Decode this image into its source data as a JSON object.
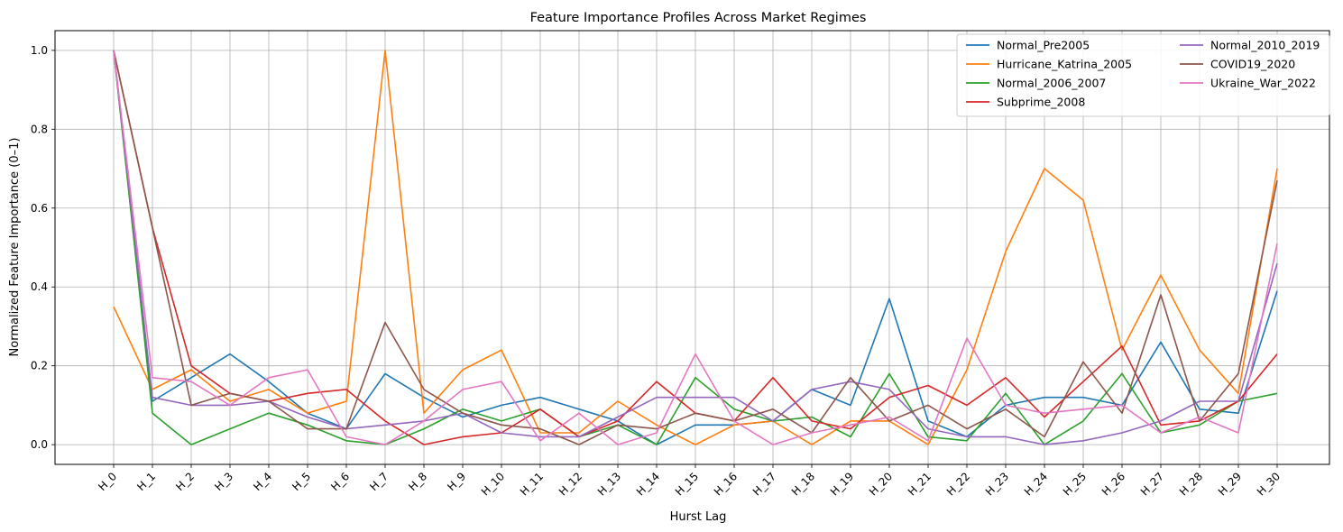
{
  "chart_data": {
    "type": "line",
    "title": "Feature Importance Profiles Across Market Regimes",
    "xlabel": "Hurst Lag",
    "ylabel": "Normalized Feature Importance (0–1)",
    "ylim": [
      -0.05,
      1.05
    ],
    "yticks": [
      "0.0",
      "0.2",
      "0.4",
      "0.6",
      "0.8",
      "1.0"
    ],
    "ytick_values": [
      0.0,
      0.2,
      0.4,
      0.6,
      0.8,
      1.0
    ],
    "grid": true,
    "legend_position": "top-right",
    "categories": [
      "H_0",
      "H_1",
      "H_2",
      "H_3",
      "H_4",
      "H_5",
      "H_6",
      "H_7",
      "H_8",
      "H_9",
      "H_10",
      "H_11",
      "H_12",
      "H_13",
      "H_14",
      "H_15",
      "H_16",
      "H_17",
      "H_18",
      "H_19",
      "H_20",
      "H_21",
      "H_22",
      "H_23",
      "H_24",
      "H_25",
      "H_26",
      "H_27",
      "H_28",
      "H_29",
      "H_30"
    ],
    "series": [
      {
        "name": "Normal_Pre2005",
        "color": "#1f77b4",
        "values": [
          1.0,
          0.11,
          0.17,
          0.23,
          0.16,
          0.08,
          0.04,
          0.18,
          0.12,
          0.07,
          0.1,
          0.12,
          0.09,
          0.06,
          0.0,
          0.05,
          0.05,
          0.06,
          0.14,
          0.1,
          0.37,
          0.06,
          0.02,
          0.1,
          0.12,
          0.12,
          0.1,
          0.26,
          0.09,
          0.08,
          0.39
        ]
      },
      {
        "name": "Hurricane_Katrina_2005",
        "color": "#ff7f0e",
        "values": [
          0.35,
          0.14,
          0.19,
          0.11,
          0.14,
          0.08,
          0.11,
          1.0,
          0.08,
          0.19,
          0.24,
          0.03,
          0.03,
          0.11,
          0.05,
          0.0,
          0.05,
          0.06,
          0.0,
          0.06,
          0.06,
          0.0,
          0.19,
          0.49,
          0.7,
          0.62,
          0.24,
          0.43,
          0.24,
          0.13,
          0.7
        ]
      },
      {
        "name": "Normal_2006_2007",
        "color": "#2ca02c",
        "values": [
          1.0,
          0.08,
          0.0,
          0.04,
          0.08,
          0.05,
          0.01,
          0.0,
          0.04,
          0.09,
          0.06,
          0.09,
          0.02,
          0.05,
          0.0,
          0.17,
          0.09,
          0.06,
          0.07,
          0.02,
          0.18,
          0.02,
          0.01,
          0.13,
          0.0,
          0.06,
          0.18,
          0.03,
          0.05,
          0.11,
          0.13
        ]
      },
      {
        "name": "Subprime_2008",
        "color": "#d62728",
        "values": [
          1.0,
          0.55,
          0.2,
          0.13,
          0.11,
          0.13,
          0.14,
          0.06,
          0.0,
          0.02,
          0.03,
          0.09,
          0.02,
          0.06,
          0.16,
          0.08,
          0.06,
          0.17,
          0.06,
          0.04,
          0.12,
          0.15,
          0.1,
          0.17,
          0.07,
          0.16,
          0.25,
          0.05,
          0.06,
          0.11,
          0.23
        ]
      },
      {
        "name": "Normal_2010_2019",
        "color": "#9467bd",
        "values": [
          1.0,
          0.12,
          0.1,
          0.1,
          0.11,
          0.07,
          0.04,
          0.05,
          0.06,
          0.08,
          0.03,
          0.02,
          0.02,
          0.07,
          0.12,
          0.12,
          0.12,
          0.06,
          0.14,
          0.16,
          0.14,
          0.04,
          0.02,
          0.02,
          0.0,
          0.01,
          0.03,
          0.06,
          0.11,
          0.11,
          0.46
        ]
      },
      {
        "name": "COVID19_2020",
        "color": "#8c564b",
        "values": [
          1.0,
          0.55,
          0.1,
          0.13,
          0.11,
          0.04,
          0.04,
          0.31,
          0.14,
          0.08,
          0.05,
          0.04,
          0.0,
          0.05,
          0.04,
          0.08,
          0.06,
          0.09,
          0.03,
          0.17,
          0.06,
          0.1,
          0.04,
          0.09,
          0.02,
          0.21,
          0.08,
          0.38,
          0.06,
          0.18,
          0.67
        ]
      },
      {
        "name": "Ukraine_War_2022",
        "color": "#e377c2",
        "values": [
          1.0,
          0.17,
          0.16,
          0.1,
          0.17,
          0.19,
          0.02,
          0.0,
          0.06,
          0.14,
          0.16,
          0.01,
          0.08,
          0.0,
          0.03,
          0.23,
          0.06,
          0.0,
          0.03,
          0.05,
          0.07,
          0.01,
          0.27,
          0.1,
          0.08,
          0.09,
          0.1,
          0.03,
          0.07,
          0.03,
          0.51
        ]
      }
    ]
  }
}
